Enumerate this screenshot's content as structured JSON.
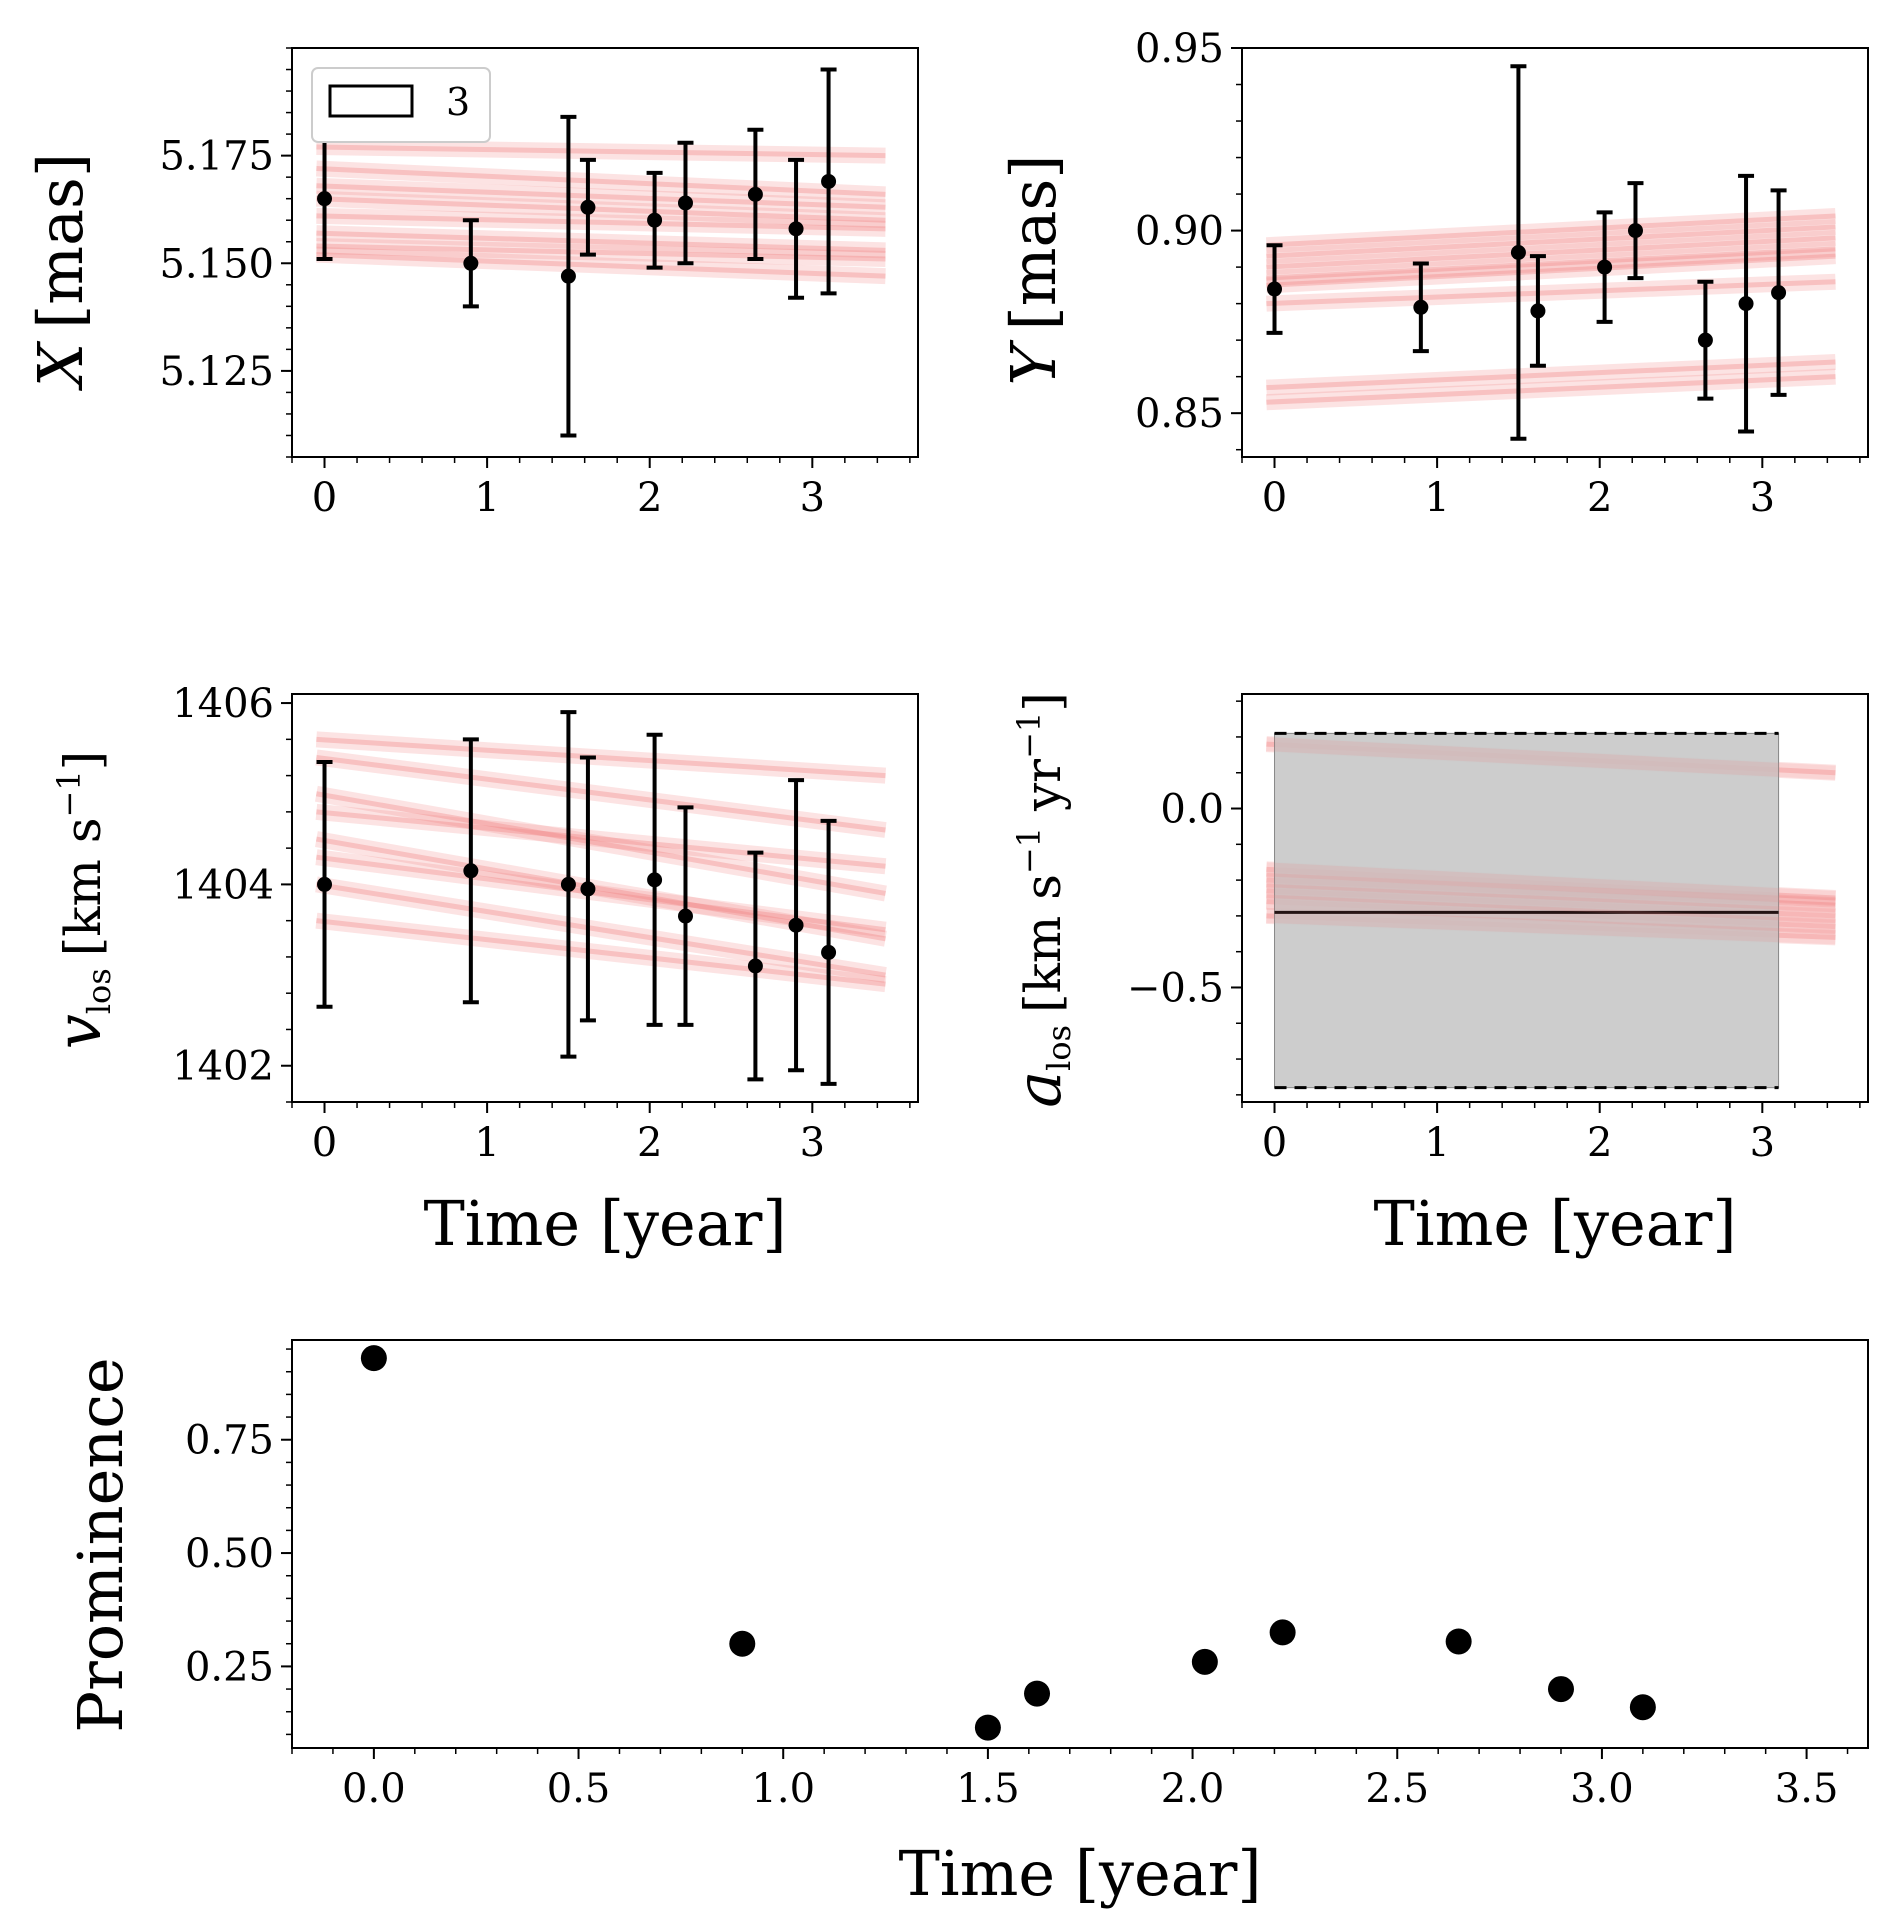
{
  "colors": {
    "model": "#f08080",
    "data": "#000000",
    "band": "#c8c8c8"
  },
  "legend": {
    "label": "3"
  },
  "xlabel": "Time [year]",
  "chart_data": [
    {
      "id": "x",
      "type": "scatter",
      "xlim": [
        -0.2,
        3.65
      ],
      "ylim": [
        5.105,
        5.2
      ],
      "xticks": [
        "0",
        "1",
        "2",
        "3"
      ],
      "yticks": [
        "5.125",
        "5.150",
        "5.175"
      ],
      "ylabel": {
        "main": "X",
        "unit": "[mas]"
      },
      "x": [
        0,
        0.9,
        1.5,
        1.62,
        2.03,
        2.22,
        2.65,
        2.9,
        3.1
      ],
      "y": [
        5.165,
        5.15,
        5.147,
        5.163,
        5.16,
        5.164,
        5.166,
        5.158,
        5.169
      ],
      "yerr": [
        0.014,
        0.01,
        0.037,
        0.011,
        0.011,
        0.014,
        0.015,
        0.016,
        0.026
      ],
      "model_lines": [
        [
          5.165,
          5.16
        ],
        [
          5.168,
          5.163
        ],
        [
          5.172,
          5.166
        ],
        [
          5.157,
          5.153
        ],
        [
          5.152,
          5.147
        ],
        [
          5.177,
          5.175
        ],
        [
          5.161,
          5.158
        ],
        [
          5.154,
          5.151
        ]
      ]
    },
    {
      "id": "y",
      "type": "scatter",
      "xlim": [
        -0.2,
        3.65
      ],
      "ylim": [
        0.838,
        0.95
      ],
      "xticks": [
        "0",
        "1",
        "2",
        "3"
      ],
      "yticks": [
        "0.85",
        "0.90",
        "0.95"
      ],
      "ylabel": {
        "main": "Y",
        "unit": "[mas]"
      },
      "x": [
        0,
        0.9,
        1.5,
        1.62,
        2.03,
        2.22,
        2.65,
        2.9,
        3.1
      ],
      "y": [
        0.884,
        0.879,
        0.894,
        0.878,
        0.89,
        0.9,
        0.87,
        0.88,
        0.883
      ],
      "yerr": [
        0.012,
        0.012,
        0.051,
        0.015,
        0.015,
        0.013,
        0.016,
        0.035,
        0.028
      ],
      "model_lines": [
        [
          0.89,
          0.898
        ],
        [
          0.887,
          0.895
        ],
        [
          0.893,
          0.901
        ],
        [
          0.885,
          0.893
        ],
        [
          0.896,
          0.904
        ],
        [
          0.88,
          0.886
        ],
        [
          0.857,
          0.864
        ],
        [
          0.853,
          0.86
        ]
      ]
    },
    {
      "id": "vlos",
      "type": "scatter",
      "xlim": [
        -0.2,
        3.65
      ],
      "ylim": [
        1401.6,
        1406.1
      ],
      "xticks": [
        "0",
        "1",
        "2",
        "3"
      ],
      "yticks": [
        "1402",
        "1404",
        "1406"
      ],
      "ylabel": {
        "main": "v",
        "sub": "los",
        "unit": "[km s",
        "sup": "−1",
        "end": "]"
      },
      "x": [
        0,
        0.9,
        1.5,
        1.62,
        2.03,
        2.22,
        2.65,
        2.9,
        3.1
      ],
      "y": [
        1404.0,
        1404.15,
        1404.0,
        1403.95,
        1404.05,
        1403.65,
        1403.1,
        1403.55,
        1403.25
      ],
      "yerr": [
        1.35,
        1.45,
        1.9,
        1.45,
        1.6,
        1.2,
        1.25,
        1.6,
        1.45
      ],
      "model_lines": [
        [
          1404.5,
          1403.4
        ],
        [
          1404.0,
          1403.0
        ],
        [
          1405.0,
          1403.9
        ],
        [
          1405.4,
          1404.6
        ],
        [
          1404.3,
          1403.5
        ],
        [
          1405.6,
          1405.2
        ],
        [
          1403.6,
          1402.9
        ],
        [
          1404.8,
          1404.2
        ]
      ]
    },
    {
      "id": "alos",
      "type": "scatter",
      "xlim": [
        -0.2,
        3.65
      ],
      "ylim": [
        -0.82,
        0.32
      ],
      "xticks": [
        "0",
        "1",
        "2",
        "3"
      ],
      "yticks": [
        "−0.5",
        "0.0"
      ],
      "ytick_values": [
        -0.5,
        0.0
      ],
      "ylabel": {
        "main": "a",
        "sub": "los",
        "unit": "[km s",
        "sup": "−1",
        "mid": " yr",
        "sup2": "−1",
        "end": "]"
      },
      "band": {
        "x0": 0,
        "x1": 3.1,
        "lo": -0.78,
        "hi": 0.21,
        "mean": -0.29
      },
      "model_lines": [
        [
          -0.2,
          -0.27
        ],
        [
          -0.23,
          -0.3
        ],
        [
          -0.17,
          -0.25
        ],
        [
          -0.26,
          -0.33
        ],
        [
          0.18,
          0.1
        ],
        [
          -0.3,
          -0.36
        ]
      ]
    },
    {
      "id": "prominence",
      "type": "scatter",
      "xlim": [
        -0.2,
        3.65
      ],
      "ylim": [
        0.07,
        0.97
      ],
      "xticks": [
        "0.0",
        "0.5",
        "1.0",
        "1.5",
        "2.0",
        "2.5",
        "3.0",
        "3.5"
      ],
      "xtick_values": [
        0,
        0.5,
        1.0,
        1.5,
        2.0,
        2.5,
        3.0,
        3.5
      ],
      "yticks": [
        "0.25",
        "0.50",
        "0.75"
      ],
      "ylabel": "Prominence",
      "x": [
        0,
        0.9,
        1.5,
        1.62,
        2.03,
        2.22,
        2.65,
        2.9,
        3.1
      ],
      "y": [
        0.93,
        0.3,
        0.115,
        0.19,
        0.26,
        0.325,
        0.305,
        0.2,
        0.16
      ]
    }
  ]
}
